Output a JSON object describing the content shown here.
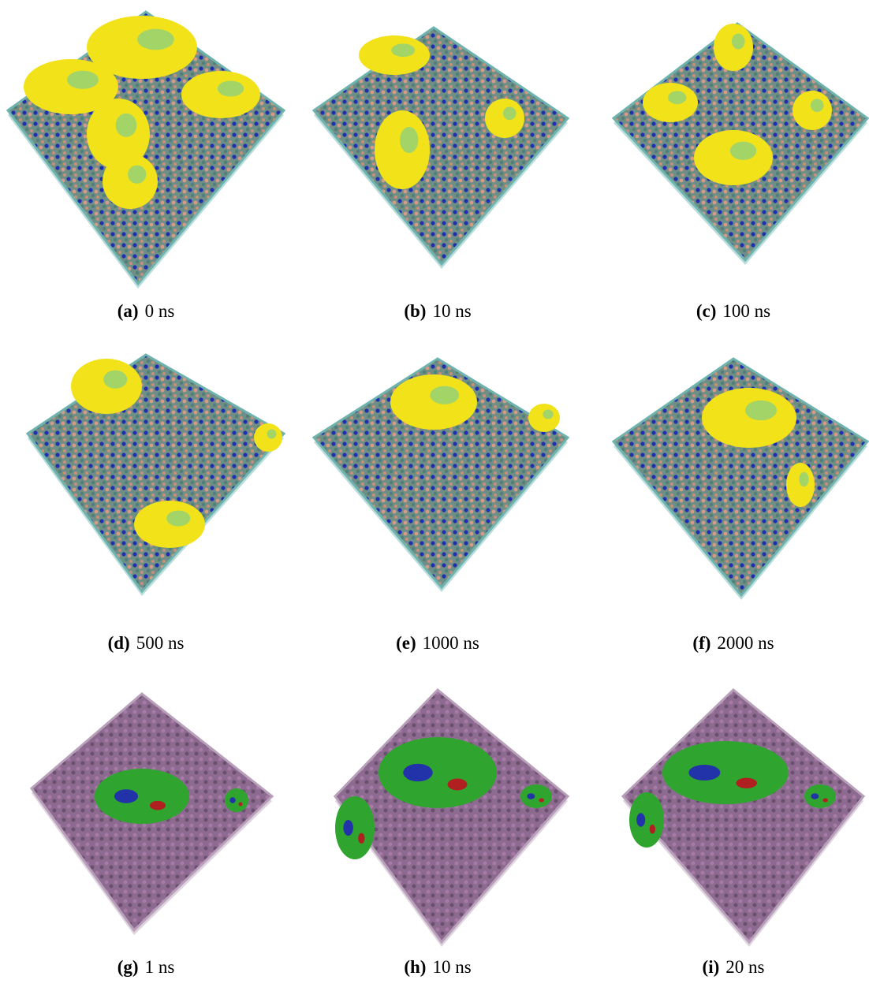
{
  "panels": [
    {
      "label": "(a)",
      "caption": "0 ns"
    },
    {
      "label": "(b)",
      "caption": "10 ns"
    },
    {
      "label": "(c)",
      "caption": "100 ns"
    },
    {
      "label": "(d)",
      "caption": "500 ns"
    },
    {
      "label": "(e)",
      "caption": "1000 ns"
    },
    {
      "label": "(f)",
      "caption": "2000 ns"
    },
    {
      "label": "(g)",
      "caption": "1 ns"
    },
    {
      "label": "(h)",
      "caption": "10 ns"
    },
    {
      "label": "(i)",
      "caption": "20 ns"
    }
  ]
}
